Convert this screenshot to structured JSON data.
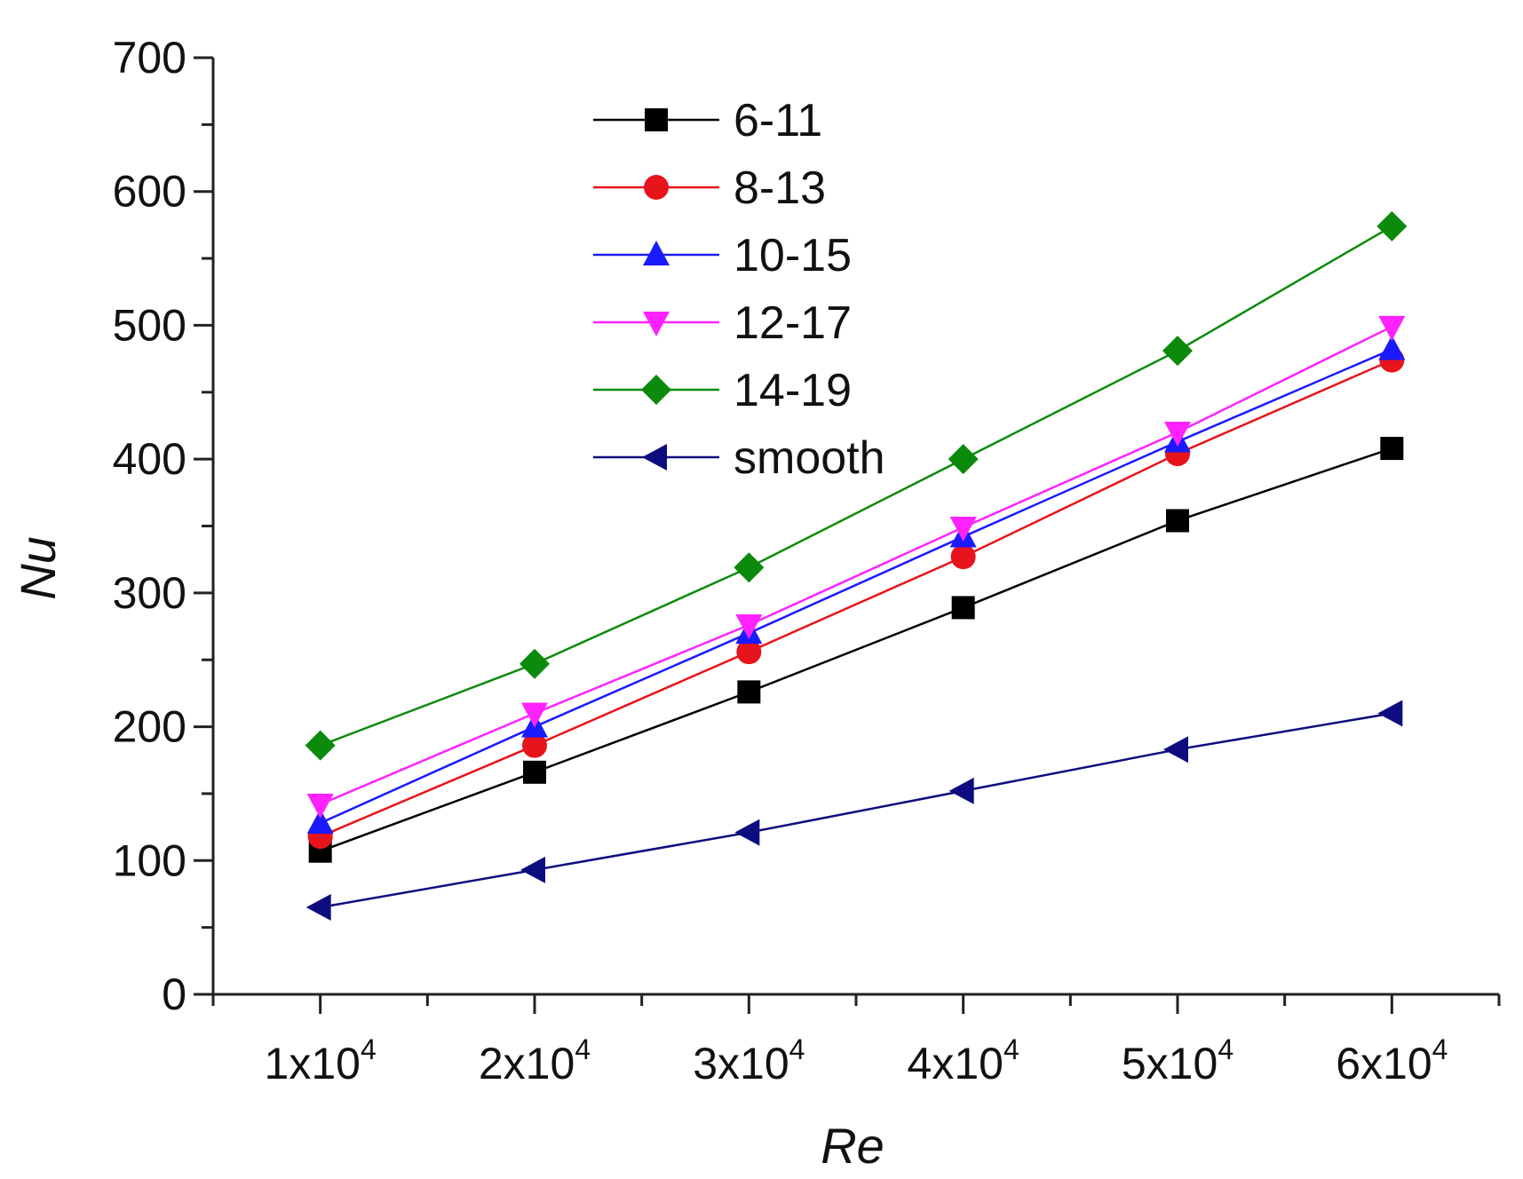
{
  "chart_data": {
    "type": "line",
    "title": "",
    "xlabel": "Re",
    "ylabel": "Nu",
    "x": [
      10000,
      20000,
      30000,
      40000,
      50000,
      60000
    ],
    "x_tick_labels": [
      {
        "mantissa": "1x10",
        "exp": "4"
      },
      {
        "mantissa": "2x10",
        "exp": "4"
      },
      {
        "mantissa": "3x10",
        "exp": "4"
      },
      {
        "mantissa": "4x10",
        "exp": "4"
      },
      {
        "mantissa": "5x10",
        "exp": "4"
      },
      {
        "mantissa": "6x10",
        "exp": "4"
      }
    ],
    "xlim": [
      5000,
      65000
    ],
    "ylim": [
      0,
      700
    ],
    "y_ticks": [
      "0",
      "100",
      "200",
      "300",
      "400",
      "500",
      "600",
      "700"
    ],
    "grid": false,
    "legend_position": "top-center",
    "series": [
      {
        "name": "6-11",
        "color": "#000000",
        "marker": "square",
        "values": [
          107,
          166,
          226,
          289,
          354,
          408
        ]
      },
      {
        "name": "8-13",
        "color": "#e8141b",
        "marker": "circle",
        "values": [
          118,
          186,
          256,
          327,
          404,
          474
        ]
      },
      {
        "name": "10-15",
        "color": "#1a1aff",
        "marker": "triangle-up",
        "values": [
          128,
          200,
          270,
          342,
          413,
          482
        ]
      },
      {
        "name": "12-17",
        "color": "#ff22ff",
        "marker": "triangle-down",
        "values": [
          142,
          210,
          276,
          349,
          420,
          499
        ]
      },
      {
        "name": "14-19",
        "color": "#0b8a0b",
        "marker": "diamond",
        "values": [
          186,
          247,
          319,
          400,
          481,
          574
        ]
      },
      {
        "name": "smooth",
        "color": "#0d0d80",
        "marker": "triangle-left",
        "values": [
          65,
          93,
          121,
          152,
          183,
          210
        ]
      }
    ]
  }
}
